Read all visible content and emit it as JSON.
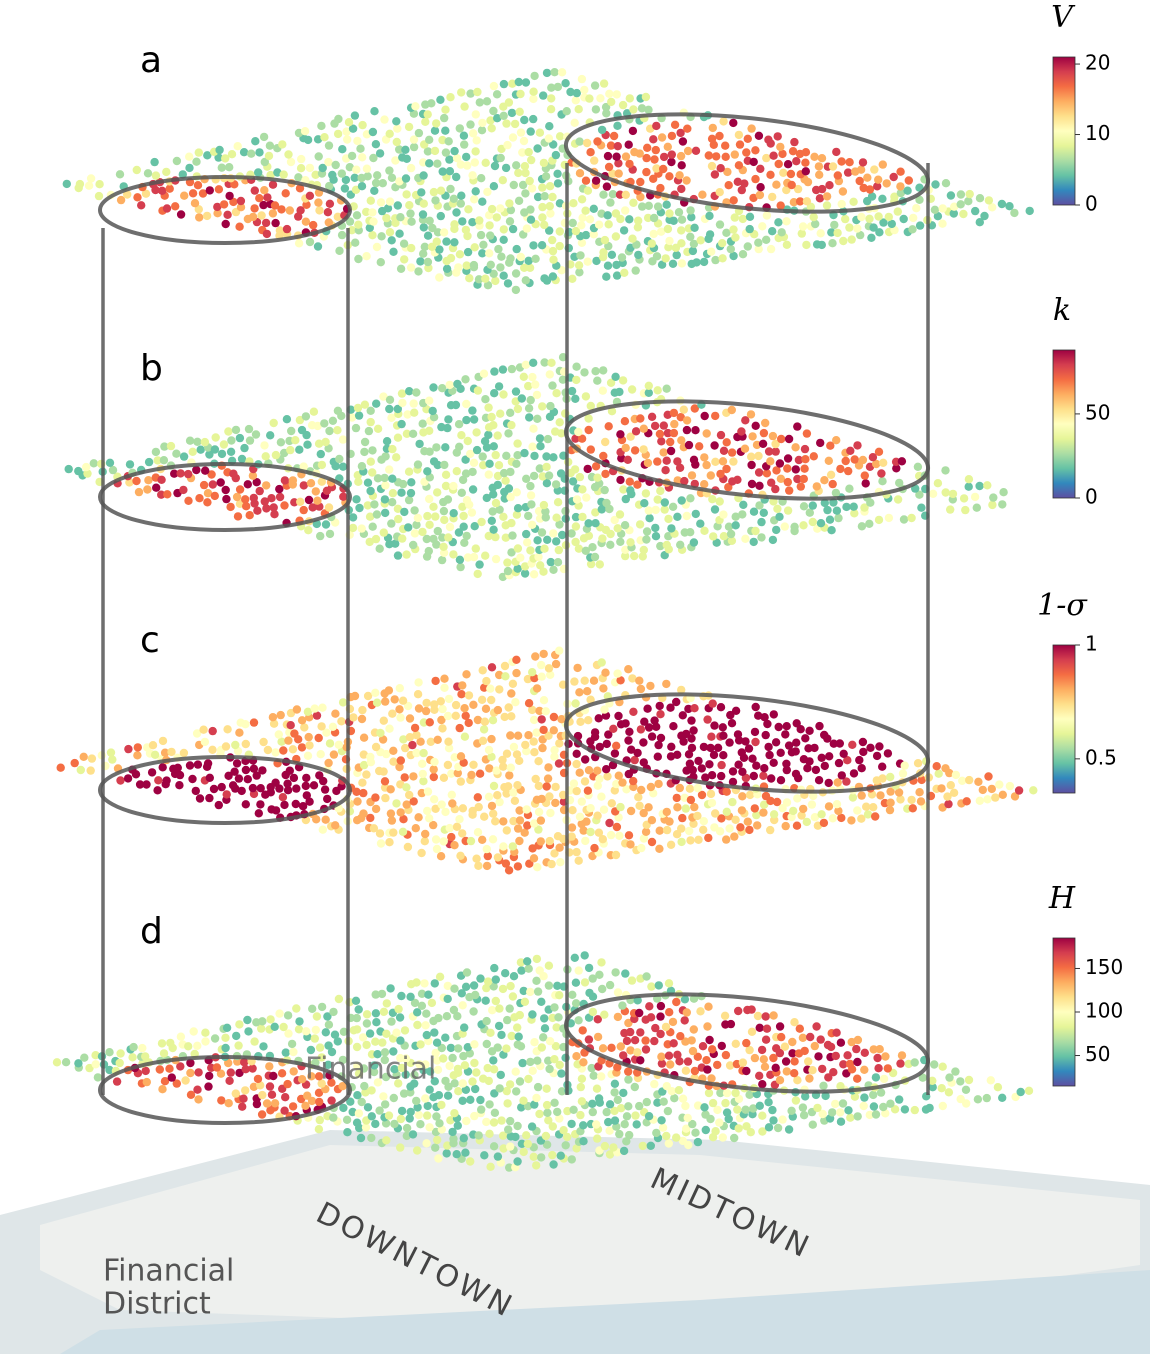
{
  "panels": [
    {
      "label": "a",
      "colorbar": {
        "title": "V",
        "lim": [
          0,
          21
        ],
        "ticks": [
          0,
          10,
          20
        ]
      }
    },
    {
      "label": "b",
      "colorbar": {
        "title": "k",
        "lim": [
          0,
          88
        ],
        "ticks": [
          0,
          50
        ]
      }
    },
    {
      "label": "c",
      "colorbar": {
        "title": "1-σ",
        "lim": [
          0.35,
          1
        ],
        "ticks": [
          0.5,
          1
        ]
      }
    },
    {
      "label": "d",
      "colorbar": {
        "title": "H",
        "lim": [
          15,
          185
        ],
        "ticks": [
          50,
          100,
          150
        ]
      }
    }
  ],
  "map_labels": {
    "financial_district": [
      "Financial",
      "District"
    ],
    "downtown": "DOWNTOWN",
    "midtown": "MIDTOWN",
    "overlay": "Financial"
  }
}
